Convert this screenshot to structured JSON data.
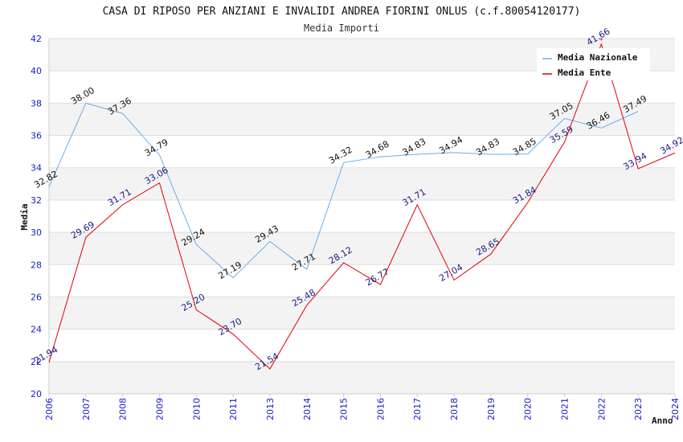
{
  "chart_data": {
    "type": "line",
    "title": "CASA DI RIPOSO PER ANZIANI E INVALIDI ANDREA FIORINI ONLUS (c.f.80054120177)",
    "subtitle": "Media Importi",
    "xlabel": "Anno",
    "ylabel": "Media",
    "ylim": [
      20,
      42
    ],
    "y_ticks": [
      20,
      22,
      24,
      26,
      28,
      30,
      32,
      34,
      36,
      38,
      40,
      42
    ],
    "x": [
      "2006",
      "2007",
      "2008",
      "2009",
      "2010",
      "2011",
      "2013",
      "2014",
      "2015",
      "2016",
      "2017",
      "2018",
      "2019",
      "2020",
      "2021",
      "2022",
      "2023",
      "2024"
    ],
    "grid": true,
    "legend_position": "top-right",
    "series": [
      {
        "name": "Media Nazionale",
        "color": "#6aaee8",
        "values": [
          32.82,
          38.0,
          37.36,
          34.79,
          29.24,
          27.19,
          29.43,
          27.71,
          34.32,
          34.68,
          34.83,
          34.94,
          34.83,
          34.85,
          37.05,
          36.46,
          37.49,
          null
        ],
        "labels": [
          "32.82",
          "38.00",
          "37.36",
          "34.79",
          "29.24",
          "27.19",
          "29.43",
          "27.71",
          "34.32",
          "34.68",
          "34.83",
          "34.94",
          "34.83",
          "34.85",
          "37.05",
          "36.46",
          "37.49",
          ""
        ]
      },
      {
        "name": "Media Ente",
        "color": "#e0000a",
        "values": [
          21.94,
          29.69,
          31.71,
          33.06,
          25.2,
          23.7,
          21.54,
          25.48,
          28.12,
          26.77,
          31.71,
          27.04,
          28.65,
          31.84,
          35.59,
          41.66,
          33.94,
          34.92
        ],
        "labels": [
          "21.94",
          "29.69",
          "31.71",
          "33.06",
          "25.20",
          "23.70",
          "21.54",
          "25.48",
          "28.12",
          "26.77",
          "31.71",
          "27.04",
          "28.65",
          "31.84",
          "35.59",
          "41.66",
          "33.94",
          "34.92"
        ]
      }
    ]
  }
}
